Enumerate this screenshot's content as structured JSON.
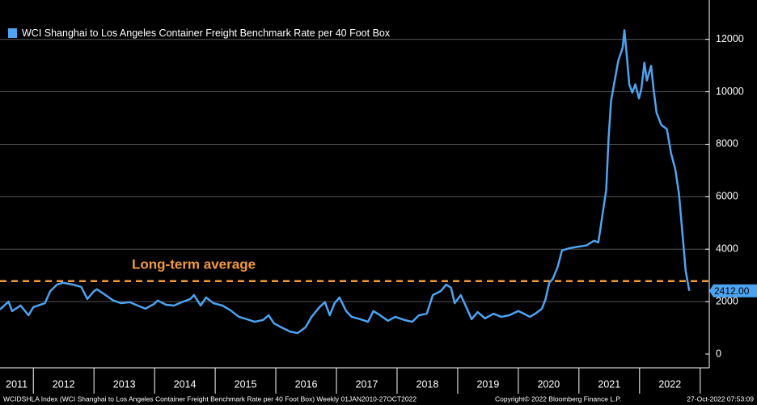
{
  "chart_data": {
    "type": "line",
    "legend_title": "WCI Shanghai to Los Angeles Container Freight Benchmark Rate per 40 Foot Box",
    "footer_left": "WCIDSHLA Index (WCI Shanghai to Los Angeles Container Freight Benchmark Rate per 40 Foot Box)  Weekly 01JAN2010-27OCT2022",
    "footer_center": "Copyright© 2022 Bloomberg Finance L.P.",
    "footer_right": "27-Oct-2022 07:53:09",
    "xlim": [
      2011.45,
      2023.15
    ],
    "xticks": [
      2011,
      2012,
      2013,
      2014,
      2015,
      2016,
      2017,
      2018,
      2019,
      2020,
      2021,
      2022
    ],
    "ylim": [
      0,
      13500
    ],
    "yticks": [
      0,
      2000,
      4000,
      6000,
      8000,
      10000,
      12000
    ],
    "grid": true,
    "reference_line": {
      "value": 2780,
      "label": "Long-term average",
      "color": "#f39a3e"
    },
    "x": [
      2011.45,
      2011.59,
      2011.65,
      2011.79,
      2011.92,
      2012.0,
      2012.19,
      2012.28,
      2012.39,
      2012.49,
      2012.65,
      2012.79,
      2012.89,
      2013.0,
      2013.05,
      2013.19,
      2013.32,
      2013.45,
      2013.59,
      2013.72,
      2013.85,
      2013.99,
      2014.05,
      2014.19,
      2014.32,
      2014.45,
      2014.59,
      2014.65,
      2014.76,
      2014.85,
      2014.97,
      2015.12,
      2015.25,
      2015.39,
      2015.52,
      2015.65,
      2015.79,
      2015.88,
      2015.97,
      2016.09,
      2016.23,
      2016.36,
      2016.49,
      2016.59,
      2016.72,
      2016.81,
      2016.89,
      2016.97,
      2017.05,
      2017.16,
      2017.25,
      2017.39,
      2017.52,
      2017.61,
      2017.72,
      2017.85,
      2017.97,
      2018.12,
      2018.25,
      2018.36,
      2018.49,
      2018.59,
      2018.72,
      2018.81,
      2018.89,
      2018.95,
      2019.05,
      2019.13,
      2019.23,
      2019.33,
      2019.45,
      2019.59,
      2019.72,
      2019.85,
      2020.0,
      2020.09,
      2020.19,
      2020.28,
      2020.39,
      2020.45,
      2020.51,
      2020.57,
      2020.65,
      2020.72,
      2020.85,
      2021.0,
      2021.12,
      2021.25,
      2021.32,
      2021.39,
      2021.45,
      2021.49,
      2021.53,
      2021.59,
      2021.65,
      2021.72,
      2021.75,
      2021.79,
      2021.83,
      2021.88,
      2021.93,
      2021.99,
      2022.03,
      2022.08,
      2022.12,
      2022.19,
      2022.23,
      2022.28,
      2022.36,
      2022.45,
      2022.52,
      2022.59,
      2022.65,
      2022.72,
      2022.76,
      2022.82
    ],
    "series": [
      {
        "name": "WCI Shanghai to Los Angeles Container Freight Benchmark Rate per 40 Foot Box",
        "color": "#4ea3f1",
        "values": [
          1700,
          2000,
          1640,
          1850,
          1480,
          1790,
          1940,
          2400,
          2650,
          2720,
          2650,
          2560,
          2100,
          2400,
          2470,
          2250,
          2040,
          1940,
          1980,
          1850,
          1730,
          1910,
          2040,
          1880,
          1850,
          1980,
          2100,
          2250,
          1850,
          2160,
          1940,
          1850,
          1670,
          1420,
          1330,
          1230,
          1300,
          1480,
          1170,
          1020,
          860,
          800,
          1020,
          1420,
          1790,
          1980,
          1480,
          1940,
          2160,
          1640,
          1420,
          1330,
          1230,
          1640,
          1480,
          1270,
          1420,
          1300,
          1230,
          1480,
          1540,
          2250,
          2400,
          2650,
          2530,
          1940,
          2250,
          1850,
          1330,
          1600,
          1360,
          1540,
          1420,
          1480,
          1640,
          1540,
          1420,
          1540,
          1730,
          2100,
          2720,
          2870,
          3330,
          3950,
          4040,
          4100,
          4140,
          4320,
          4260,
          5340,
          6270,
          8270,
          9660,
          10430,
          11200,
          11670,
          12350,
          11360,
          10280,
          9970,
          10280,
          9750,
          10120,
          11110,
          10430,
          10990,
          10120,
          9200,
          8730,
          8580,
          7650,
          7040,
          6110,
          4260,
          3180,
          2412
        ],
        "value_labels": [
          null,
          null,
          null,
          null,
          null,
          null,
          null,
          null,
          null,
          null,
          null,
          null,
          null,
          null,
          null,
          null,
          null,
          null,
          null,
          null,
          null,
          null,
          null,
          null,
          null,
          null,
          null,
          null,
          null,
          null,
          null,
          null,
          null,
          null,
          null,
          null,
          null,
          null,
          null,
          null,
          null,
          null,
          null,
          null,
          null,
          null,
          null,
          null,
          null,
          null,
          null,
          null,
          null,
          null,
          null,
          null,
          null,
          null,
          null,
          null,
          null,
          null,
          null,
          null,
          null,
          null,
          null,
          null,
          null,
          null,
          null,
          null,
          null,
          null,
          null,
          null,
          null,
          null,
          null,
          null,
          null,
          null,
          null,
          null,
          null,
          null,
          null,
          null,
          null,
          null,
          null,
          null,
          null,
          null,
          null,
          null,
          null,
          null,
          null,
          null,
          null,
          null,
          null,
          null,
          null,
          null,
          null,
          null,
          null,
          null,
          null,
          null,
          null,
          null,
          null,
          "2412.00"
        ]
      }
    ]
  }
}
